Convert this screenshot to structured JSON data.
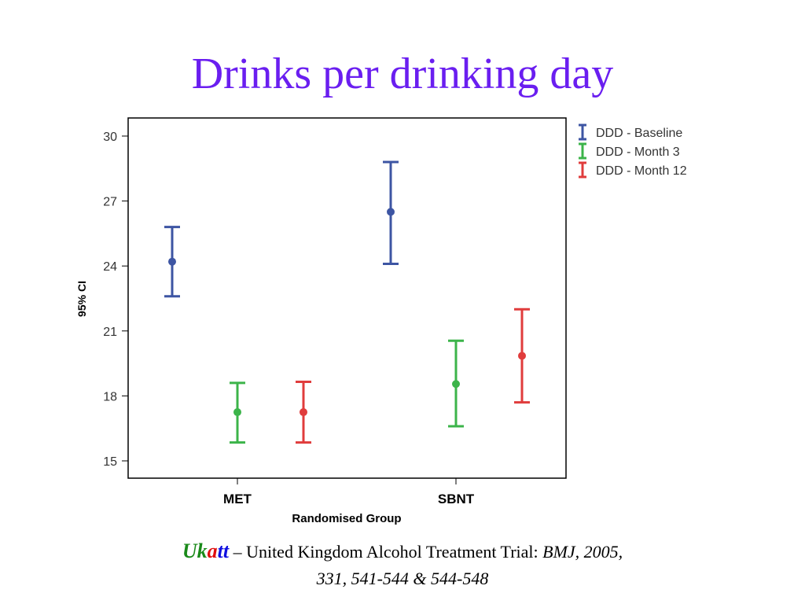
{
  "chart_data": {
    "type": "errorbar",
    "title": "Drinks per drinking day",
    "xlabel": "Randomised Group",
    "ylabel": "95% CI",
    "ylim": [
      14.5,
      30.8
    ],
    "yticks": [
      15,
      18,
      21,
      24,
      27,
      30
    ],
    "categories": [
      "MET",
      "SBNT"
    ],
    "legend_position": "top-right-outside",
    "series": [
      {
        "name": "DDD - Baseline",
        "color": "#3d55a3",
        "mean": [
          24.2,
          26.5
        ],
        "lower": [
          22.6,
          24.1
        ],
        "upper": [
          25.8,
          28.8
        ]
      },
      {
        "name": "DDD - Month 3",
        "color": "#3cb44a",
        "mean": [
          17.25,
          18.55
        ],
        "lower": [
          15.85,
          16.6
        ],
        "upper": [
          18.6,
          20.55
        ]
      },
      {
        "name": "DDD - Month 12",
        "color": "#e03c3c",
        "mean": [
          17.25,
          19.85
        ],
        "lower": [
          15.85,
          17.7
        ],
        "upper": [
          18.65,
          22.0
        ]
      }
    ]
  },
  "footer": {
    "uk": "Uk",
    "a": "a",
    "tt": "tt",
    "text": " – United Kingdom Alcohol Treatment Trial: ",
    "journal": "BMJ, 2005,",
    "line2": "331, 541-544 & 544-548"
  },
  "colors": {
    "uk": "#1a8a1a",
    "a": "#e01010",
    "tt": "#1010e0"
  }
}
